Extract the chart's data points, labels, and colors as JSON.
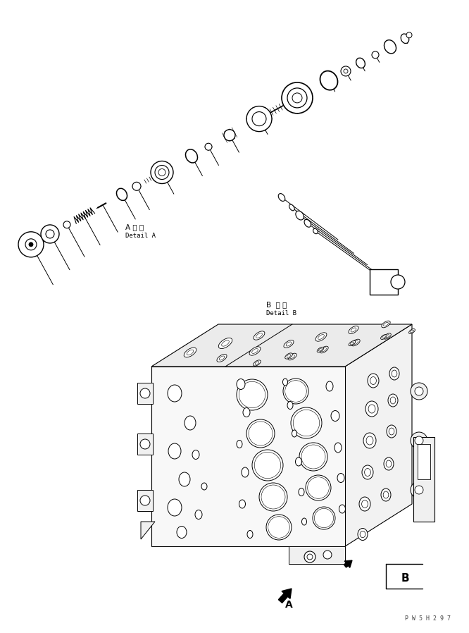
{
  "bg_color": "#ffffff",
  "line_color": "#000000",
  "fig_width": 6.66,
  "fig_height": 8.98,
  "dpi": 100,
  "label_A_japanese": "A 詳 細",
  "label_A_english": "Detail A",
  "label_B_japanese": "B  詳 細",
  "label_B_english": "Detail B",
  "watermark": "P W 5 H 2 9 7",
  "arrow_A_label": "A",
  "arrow_B_label": "B"
}
